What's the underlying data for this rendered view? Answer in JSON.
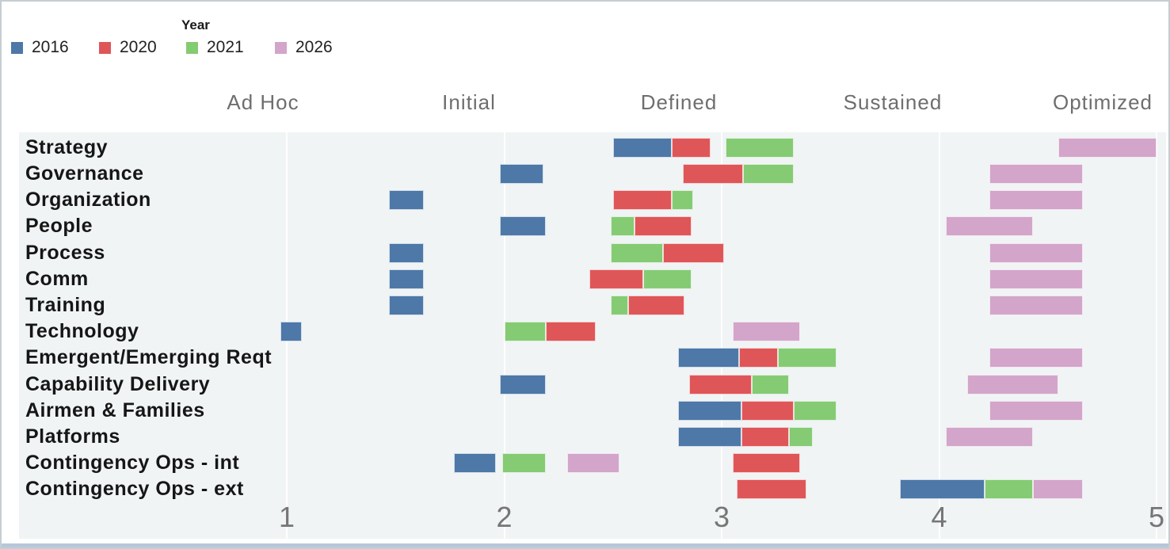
{
  "legend": {
    "title": "Year",
    "items": [
      {
        "label": "2016",
        "color": "#4d78a8"
      },
      {
        "label": "2020",
        "color": "#df5658"
      },
      {
        "label": "2021",
        "color": "#85cb74"
      },
      {
        "label": "2026",
        "color": "#d3a5ca"
      }
    ]
  },
  "chart_data": {
    "type": "bar",
    "subtype": "gantt",
    "title": "",
    "xlabel": "",
    "ylabel": "",
    "x_domain": [
      1,
      5
    ],
    "x_ticks": [
      "1",
      "2",
      "3",
      "4",
      "5"
    ],
    "grid": "vertical-faint",
    "legend_position": "top-left",
    "column_headers": [
      "Ad Hoc",
      "Initial",
      "Defined",
      "Sustained",
      "Optimized"
    ],
    "series_colors": {
      "2016": "#4d78a8",
      "2020": "#df5658",
      "2021": "#85cb74",
      "2026": "#d3a5ca"
    },
    "rows": [
      {
        "label": "Strategy",
        "segments": [
          {
            "year": "2016",
            "start": 2.5,
            "end": 2.77
          },
          {
            "year": "2020",
            "start": 2.77,
            "end": 2.95
          },
          {
            "year": "2021",
            "start": 3.02,
            "end": 3.33
          },
          {
            "year": "2026",
            "start": 4.55,
            "end": 5.0
          }
        ]
      },
      {
        "label": "Governance",
        "segments": [
          {
            "year": "2016",
            "start": 1.98,
            "end": 2.18
          },
          {
            "year": "2020",
            "start": 2.82,
            "end": 3.1
          },
          {
            "year": "2021",
            "start": 3.1,
            "end": 3.33
          },
          {
            "year": "2026",
            "start": 4.23,
            "end": 4.66
          }
        ]
      },
      {
        "label": "Organization",
        "segments": [
          {
            "year": "2016",
            "start": 1.47,
            "end": 1.63
          },
          {
            "year": "2020",
            "start": 2.5,
            "end": 2.77
          },
          {
            "year": "2021",
            "start": 2.77,
            "end": 2.87
          },
          {
            "year": "2026",
            "start": 4.23,
            "end": 4.66
          }
        ]
      },
      {
        "label": "People",
        "segments": [
          {
            "year": "2016",
            "start": 1.98,
            "end": 2.19
          },
          {
            "year": "2021",
            "start": 2.49,
            "end": 2.6
          },
          {
            "year": "2020",
            "start": 2.6,
            "end": 2.86
          },
          {
            "year": "2026",
            "start": 4.03,
            "end": 4.43
          }
        ]
      },
      {
        "label": "Process",
        "segments": [
          {
            "year": "2016",
            "start": 1.47,
            "end": 1.63
          },
          {
            "year": "2021",
            "start": 2.49,
            "end": 2.73
          },
          {
            "year": "2020",
            "start": 2.73,
            "end": 3.01
          },
          {
            "year": "2026",
            "start": 4.23,
            "end": 4.66
          }
        ]
      },
      {
        "label": "Comm",
        "segments": [
          {
            "year": "2016",
            "start": 1.47,
            "end": 1.63
          },
          {
            "year": "2020",
            "start": 2.39,
            "end": 2.64
          },
          {
            "year": "2021",
            "start": 2.64,
            "end": 2.86
          },
          {
            "year": "2026",
            "start": 4.23,
            "end": 4.66
          }
        ]
      },
      {
        "label": "Training",
        "segments": [
          {
            "year": "2016",
            "start": 1.47,
            "end": 1.63
          },
          {
            "year": "2021",
            "start": 2.49,
            "end": 2.57
          },
          {
            "year": "2020",
            "start": 2.57,
            "end": 2.83
          },
          {
            "year": "2026",
            "start": 4.23,
            "end": 4.66
          }
        ]
      },
      {
        "label": "Technology",
        "segments": [
          {
            "year": "2016",
            "start": 0.97,
            "end": 1.07
          },
          {
            "year": "2021",
            "start": 2.0,
            "end": 2.19
          },
          {
            "year": "2020",
            "start": 2.19,
            "end": 2.42
          },
          {
            "year": "2026",
            "start": 3.05,
            "end": 3.36
          }
        ]
      },
      {
        "label": "Emergent/Emerging Reqt",
        "segments": [
          {
            "year": "2016",
            "start": 2.8,
            "end": 3.08
          },
          {
            "year": "2020",
            "start": 3.08,
            "end": 3.26
          },
          {
            "year": "2021",
            "start": 3.26,
            "end": 3.53
          },
          {
            "year": "2026",
            "start": 4.23,
            "end": 4.66
          }
        ]
      },
      {
        "label": "Capability Delivery",
        "segments": [
          {
            "year": "2016",
            "start": 1.98,
            "end": 2.19
          },
          {
            "year": "2020",
            "start": 2.85,
            "end": 3.14
          },
          {
            "year": "2021",
            "start": 3.14,
            "end": 3.31
          },
          {
            "year": "2026",
            "start": 4.13,
            "end": 4.55
          }
        ]
      },
      {
        "label": "Airmen & Families",
        "segments": [
          {
            "year": "2016",
            "start": 2.8,
            "end": 3.09
          },
          {
            "year": "2020",
            "start": 3.09,
            "end": 3.33
          },
          {
            "year": "2021",
            "start": 3.33,
            "end": 3.53
          },
          {
            "year": "2026",
            "start": 4.23,
            "end": 4.66
          }
        ]
      },
      {
        "label": "Platforms",
        "segments": [
          {
            "year": "2016",
            "start": 2.8,
            "end": 3.09
          },
          {
            "year": "2020",
            "start": 3.09,
            "end": 3.31
          },
          {
            "year": "2021",
            "start": 3.31,
            "end": 3.42
          },
          {
            "year": "2026",
            "start": 4.03,
            "end": 4.43
          }
        ]
      },
      {
        "label": "Contingency Ops - int",
        "segments": [
          {
            "year": "2016",
            "start": 1.77,
            "end": 1.96
          },
          {
            "year": "2021",
            "start": 1.99,
            "end": 2.19
          },
          {
            "year": "2026",
            "start": 2.29,
            "end": 2.53
          },
          {
            "year": "2020",
            "start": 3.05,
            "end": 3.36
          }
        ]
      },
      {
        "label": "Contingency Ops - ext",
        "segments": [
          {
            "year": "2020",
            "start": 3.07,
            "end": 3.39
          },
          {
            "year": "2016",
            "start": 3.82,
            "end": 4.21
          },
          {
            "year": "2021",
            "start": 4.21,
            "end": 4.43
          },
          {
            "year": "2026",
            "start": 4.43,
            "end": 4.66
          }
        ]
      }
    ]
  },
  "colors": {
    "plot_background": "#f0f4f5",
    "header_text": "#6e6e6e",
    "tick_text": "#767676",
    "row_label_text": "#161616",
    "bottom_strip": "#b5c8d9",
    "frame_border": "#c5ced2"
  }
}
